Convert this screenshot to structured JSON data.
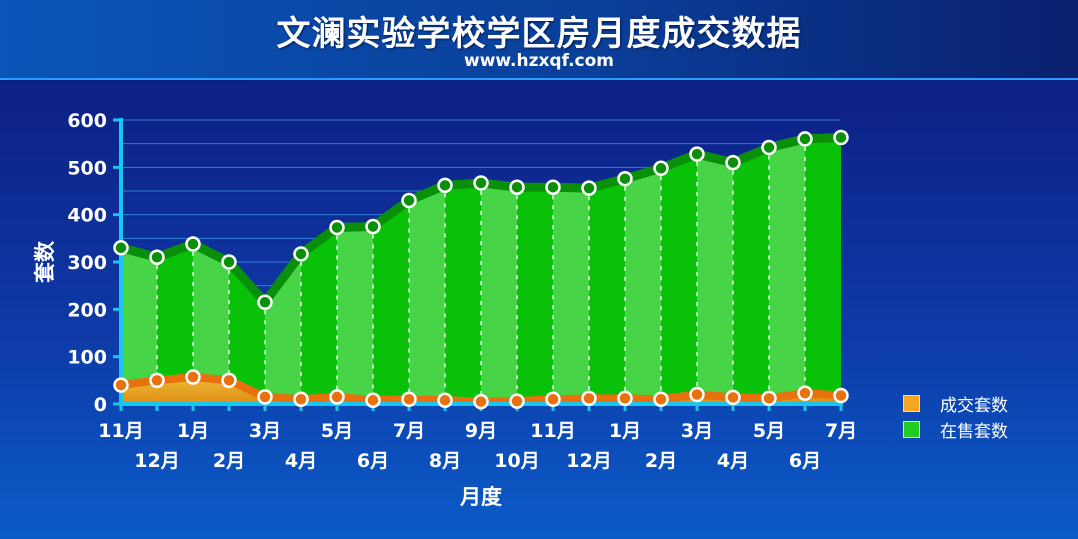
{
  "header": {
    "title": "文澜实验学校学区房月度成交数据",
    "subtitle": "www.hzxqf.com"
  },
  "chart_data": {
    "type": "area",
    "title": "文澜实验学校学区房月度成交数据",
    "subtitle": "www.hzxqf.com",
    "xlabel": "月度",
    "ylabel": "套数",
    "ylim": [
      0,
      600
    ],
    "yticks": [
      0,
      100,
      200,
      300,
      400,
      500,
      600
    ],
    "categories": [
      "11月",
      "12月",
      "1月",
      "2月",
      "3月",
      "4月",
      "5月",
      "6月",
      "7月",
      "8月",
      "9月",
      "10月",
      "11月",
      "12月",
      "1月",
      "2月",
      "3月",
      "4月",
      "5月",
      "6月",
      "7月"
    ],
    "series": [
      {
        "name": "成交套数",
        "color": "#f5a623",
        "values": [
          40,
          50,
          57,
          50,
          15,
          10,
          15,
          8,
          10,
          8,
          5,
          6,
          10,
          12,
          12,
          10,
          20,
          14,
          12,
          23,
          18
        ]
      },
      {
        "name": "在售套数",
        "color": "#22cc22",
        "values": [
          330,
          310,
          338,
          300,
          215,
          317,
          373,
          375,
          430,
          462,
          467,
          458,
          458,
          456,
          476,
          498,
          528,
          510,
          542,
          560,
          563
        ]
      }
    ],
    "legend": "right",
    "grid": true
  }
}
